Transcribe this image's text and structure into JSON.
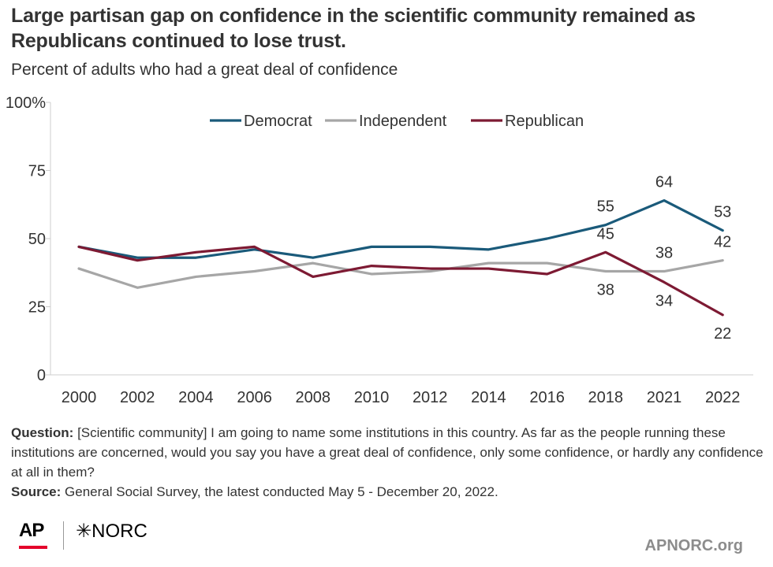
{
  "header": {
    "title": "Large partisan gap on confidence in the scientific community remained as Republicans continued to lose trust.",
    "subtitle": "Percent of adults who had a great deal of confidence"
  },
  "notes": {
    "question_label": "Question:",
    "question_text": "[Scientific community] I am going to name some institutions in this country. As far as the people running these institutions are concerned, would you say you have a great deal of confidence, only some confidence, or hardly any confidence at all in them?",
    "source_label": "Source:",
    "source_text": "General Social Survey, the latest conducted May 5 - December 20, 2022."
  },
  "footer": {
    "logo_ap": "AP",
    "logo_norc": "✳NORC",
    "site": "APNORC.org"
  },
  "chart_data": {
    "type": "line",
    "x": [
      "2000",
      "2002",
      "2004",
      "2006",
      "2008",
      "2010",
      "2012",
      "2014",
      "2016",
      "2018",
      "2021",
      "2022"
    ],
    "ylim": [
      0,
      100
    ],
    "yticks": [
      0,
      25,
      50,
      75,
      100
    ],
    "ytick_labels": [
      "0",
      "25",
      "50",
      "75",
      "100%"
    ],
    "grid": false,
    "legend_position": "top-center",
    "series": [
      {
        "name": "Democrat",
        "color": "#1a5a7a",
        "values": [
          47,
          43,
          43,
          46,
          43,
          47,
          47,
          46,
          50,
          55,
          64,
          53
        ]
      },
      {
        "name": "Independent",
        "color": "#a6a6a6",
        "values": [
          39,
          32,
          36,
          38,
          41,
          37,
          38,
          41,
          41,
          38,
          38,
          42
        ]
      },
      {
        "name": "Republican",
        "color": "#7d1a33",
        "values": [
          47,
          42,
          45,
          47,
          36,
          40,
          39,
          39,
          37,
          45,
          34,
          22
        ]
      }
    ],
    "annotations": [
      {
        "series": "Democrat",
        "x": "2018",
        "label": "55",
        "position": "above"
      },
      {
        "series": "Democrat",
        "x": "2021",
        "label": "64",
        "position": "above"
      },
      {
        "series": "Democrat",
        "x": "2022",
        "label": "53",
        "position": "above"
      },
      {
        "series": "Independent",
        "x": "2018",
        "label": "38",
        "position": "below"
      },
      {
        "series": "Independent",
        "x": "2021",
        "label": "38",
        "position": "above"
      },
      {
        "series": "Independent",
        "x": "2022",
        "label": "42",
        "position": "above"
      },
      {
        "series": "Republican",
        "x": "2018",
        "label": "45",
        "position": "above"
      },
      {
        "series": "Republican",
        "x": "2021",
        "label": "34",
        "position": "below"
      },
      {
        "series": "Republican",
        "x": "2022",
        "label": "22",
        "position": "below"
      }
    ]
  }
}
